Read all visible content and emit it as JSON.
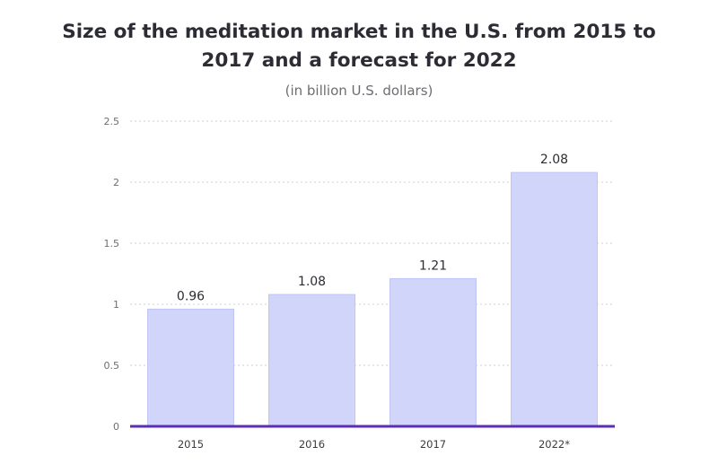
{
  "chart_data": {
    "type": "bar",
    "title_line1": "Size of the meditation market in the U.S. from 2015 to",
    "title_line2": "2017 and a forecast for 2022",
    "subtitle": "(in billion U.S. dollars)",
    "categories": [
      "2015",
      "2016",
      "2017",
      "2022*"
    ],
    "values": [
      0.96,
      1.08,
      1.21,
      2.08
    ],
    "value_labels": [
      "0.96",
      "1.08",
      "1.21",
      "2.08"
    ],
    "yticks": [
      0,
      0.5,
      1,
      1.5,
      2,
      2.5
    ],
    "ytick_labels": [
      "0",
      "0.5",
      "1",
      "1.5",
      "2",
      "2.5"
    ],
    "ylim": [
      0,
      2.5
    ],
    "grid": true,
    "colors": {
      "bar": "#d1d5fa",
      "bar_edge": "#bfc5f5",
      "axis": "#5b2fb5",
      "grid": "#cfcfd4"
    }
  }
}
